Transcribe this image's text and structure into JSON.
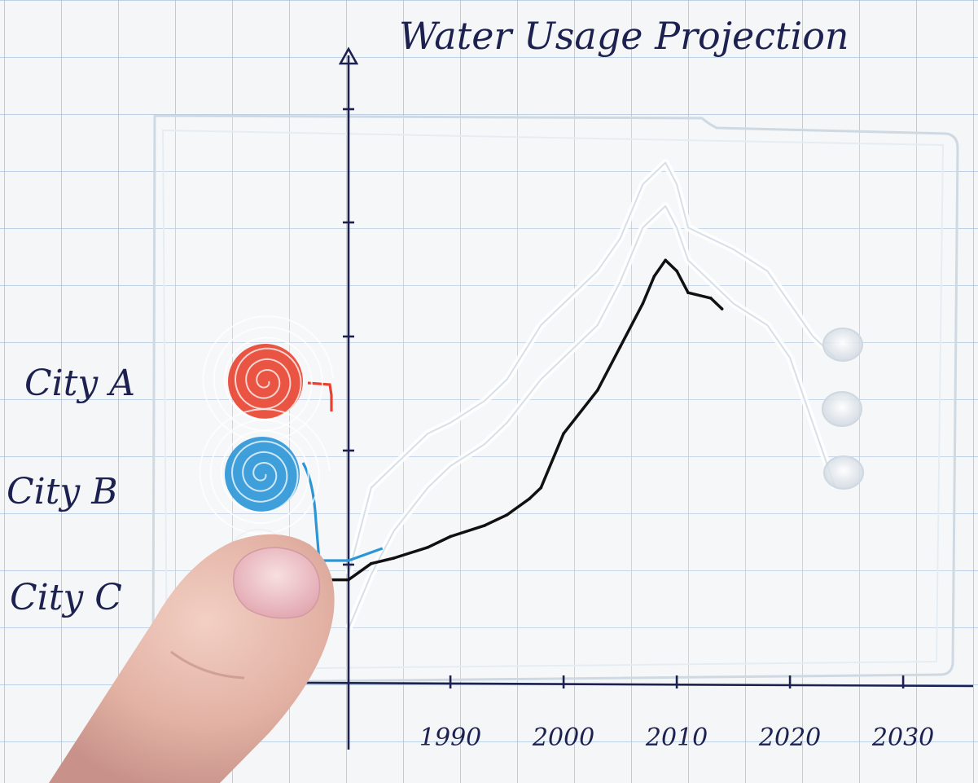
{
  "chart_data": {
    "type": "line",
    "title": "Water Usage Projection",
    "xlabel": "",
    "ylabel": "",
    "x_tick_labels": [
      "1990",
      "2000",
      "2010",
      "2020",
      "2030"
    ],
    "x_ticks": [
      1990,
      2000,
      2010,
      2020,
      2030
    ],
    "xlim": [
      1981,
      2033
    ],
    "ylim": [
      0,
      5.5
    ],
    "y_tick_count": 5,
    "grid": true,
    "legend": "left",
    "series": [
      {
        "name": "City A",
        "color": "#e8412f",
        "x": [
          1981,
          1983,
          1985,
          1988,
          1990,
          1993,
          1995,
          1998,
          2000,
          2003,
          2005,
          2007,
          2009,
          2010,
          2011,
          2013,
          2015,
          2018,
          2020,
          2022,
          2024
        ],
        "values": [
          1.0,
          1.8,
          2.0,
          2.3,
          2.4,
          2.6,
          2.8,
          3.3,
          3.5,
          3.8,
          4.1,
          4.6,
          4.8,
          4.6,
          4.2,
          4.1,
          4.0,
          3.8,
          3.5,
          3.2,
          3.0
        ]
      },
      {
        "name": "City B",
        "color": "#2b95d6",
        "x": [
          1981,
          1983,
          1985,
          1988,
          1990,
          1993,
          1995,
          1998,
          2000,
          2003,
          2005,
          2007,
          2009,
          2010,
          2011,
          2013,
          2015,
          2018,
          2020,
          2022,
          2024
        ],
        "values": [
          0.5,
          1.0,
          1.4,
          1.8,
          2.0,
          2.2,
          2.4,
          2.8,
          3.0,
          3.3,
          3.7,
          4.2,
          4.4,
          4.2,
          3.9,
          3.7,
          3.5,
          3.3,
          3.0,
          2.4,
          1.8
        ]
      },
      {
        "name": "City C",
        "color": "#111111",
        "x": [
          1981,
          1983,
          1985,
          1988,
          1990,
          1993,
          1995,
          1997,
          1998,
          2000,
          2003,
          2005,
          2007,
          2008,
          2009,
          2010,
          2011,
          2013,
          2014
        ],
        "values": [
          0.95,
          1.1,
          1.15,
          1.25,
          1.35,
          1.45,
          1.55,
          1.7,
          1.8,
          2.3,
          2.7,
          3.1,
          3.5,
          3.75,
          3.9,
          3.8,
          3.6,
          3.55,
          3.45
        ]
      }
    ]
  }
}
